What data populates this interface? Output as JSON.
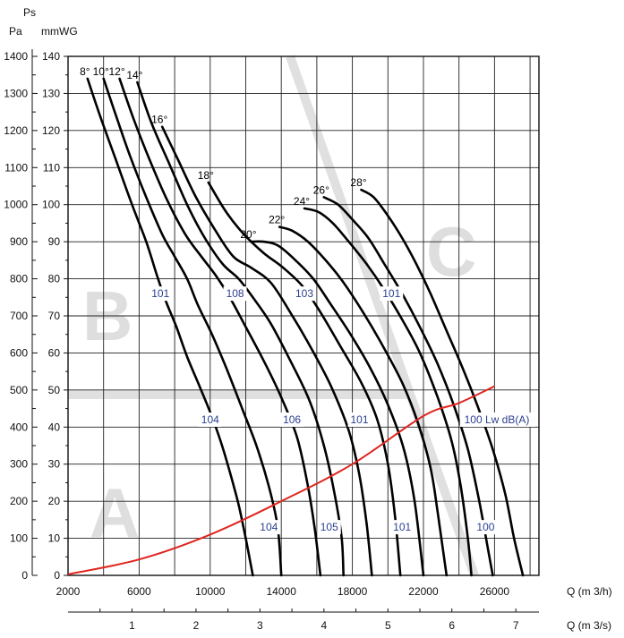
{
  "chart_data": {
    "type": "line",
    "title": "Ps",
    "ylabel_pa": "Pa",
    "ylabel_mmwg": "mmWG",
    "xlabel_m3h": "Q  (m 3/h)",
    "xlabel_m3s": "Q  (m 3/s)",
    "xlim": [
      2000,
      28500
    ],
    "ylim_mmwg": [
      0,
      140
    ],
    "ylim_pa": [
      0,
      1400
    ],
    "pa_ticks": [
      "0",
      "100",
      "200",
      "300",
      "400",
      "500",
      "600",
      "700",
      "800",
      "900",
      "1000",
      "1100",
      "1200",
      "1300",
      "1400"
    ],
    "mmwg_ticks": [
      "0",
      "10",
      "20",
      "30",
      "40",
      "50",
      "60",
      "70",
      "80",
      "90",
      "100",
      "110",
      "120",
      "130",
      "140"
    ],
    "m3h_ticks": [
      {
        "value": 2000,
        "label": "2000"
      },
      {
        "value": 6000,
        "label": "6000"
      },
      {
        "value": 10000,
        "label": "10000"
      },
      {
        "value": 14000,
        "label": "14000"
      },
      {
        "value": 18000,
        "label": "18000"
      },
      {
        "value": 22000,
        "label": "22000"
      },
      {
        "value": 26000,
        "label": "26000"
      }
    ],
    "m3s_ticks": [
      {
        "value": 1,
        "label": "1"
      },
      {
        "value": 2,
        "label": "2"
      },
      {
        "value": 3,
        "label": "3"
      },
      {
        "value": 4,
        "label": "4"
      },
      {
        "value": 5,
        "label": "5"
      },
      {
        "value": 6,
        "label": "6"
      },
      {
        "value": 7,
        "label": "7"
      }
    ],
    "zones": [
      "A",
      "B",
      "C"
    ],
    "series": [
      {
        "name": "8°",
        "label": "8°",
        "points": [
          [
            3100,
            134
          ],
          [
            3800,
            124
          ],
          [
            4700,
            112
          ],
          [
            5600,
            100
          ],
          [
            6400,
            90
          ],
          [
            7000,
            81
          ],
          [
            7500,
            74
          ],
          [
            8100,
            67
          ],
          [
            8700,
            59
          ],
          [
            9400,
            51
          ],
          [
            10000,
            44
          ],
          [
            10600,
            36
          ],
          [
            11100,
            28
          ],
          [
            11600,
            19
          ],
          [
            12000,
            10
          ],
          [
            12400,
            0
          ]
        ]
      },
      {
        "name": "10°",
        "label": "10°",
        "points": [
          [
            4000,
            134
          ],
          [
            4700,
            124
          ],
          [
            5500,
            113
          ],
          [
            6400,
            102
          ],
          [
            7300,
            92
          ],
          [
            8000,
            86
          ],
          [
            8700,
            80
          ],
          [
            9300,
            73
          ],
          [
            10100,
            65
          ],
          [
            10900,
            56
          ],
          [
            11800,
            45
          ],
          [
            12600,
            35
          ],
          [
            13300,
            24
          ],
          [
            13800,
            13
          ],
          [
            14000,
            0
          ]
        ]
      },
      {
        "name": "12°",
        "label": "12°",
        "points": [
          [
            4900,
            134
          ],
          [
            5700,
            123
          ],
          [
            6600,
            112
          ],
          [
            7600,
            101
          ],
          [
            8600,
            92
          ],
          [
            9500,
            86
          ],
          [
            10300,
            81
          ],
          [
            11100,
            75
          ],
          [
            12000,
            67
          ],
          [
            13000,
            58
          ],
          [
            14000,
            48
          ],
          [
            14900,
            37
          ],
          [
            15500,
            24
          ],
          [
            15900,
            12
          ],
          [
            16200,
            0
          ]
        ]
      },
      {
        "name": "14°",
        "label": "14°",
        "points": [
          [
            5900,
            133
          ],
          [
            6700,
            122
          ],
          [
            7700,
            111
          ],
          [
            8700,
            100
          ],
          [
            9700,
            91
          ],
          [
            10700,
            84
          ],
          [
            11600,
            80
          ],
          [
            12400,
            75
          ],
          [
            13400,
            68
          ],
          [
            14500,
            58
          ],
          [
            15600,
            47
          ],
          [
            16400,
            35
          ],
          [
            17000,
            22
          ],
          [
            17400,
            10
          ],
          [
            17500,
            0
          ]
        ]
      },
      {
        "name": "16°",
        "label": "16°",
        "points": [
          [
            7300,
            121
          ],
          [
            8200,
            112
          ],
          [
            9200,
            102
          ],
          [
            10300,
            93
          ],
          [
            11300,
            86
          ],
          [
            12300,
            83
          ],
          [
            13400,
            79
          ],
          [
            14500,
            71
          ],
          [
            15600,
            62
          ],
          [
            16800,
            51
          ],
          [
            17800,
            39
          ],
          [
            18400,
            27
          ],
          [
            18800,
            14
          ],
          [
            19100,
            0
          ]
        ]
      },
      {
        "name": "18°",
        "label": "18°",
        "points": [
          [
            9900,
            106
          ],
          [
            10900,
            98
          ],
          [
            11900,
            92
          ],
          [
            13000,
            87
          ],
          [
            14100,
            83
          ],
          [
            15200,
            78
          ],
          [
            16200,
            71
          ],
          [
            17300,
            62
          ],
          [
            18500,
            52
          ],
          [
            19400,
            42
          ],
          [
            20000,
            30
          ],
          [
            20400,
            16
          ],
          [
            20700,
            0
          ]
        ]
      },
      {
        "name": "20°",
        "label": "20°",
        "points": [
          [
            12300,
            90
          ],
          [
            13000,
            90
          ],
          [
            13800,
            89
          ],
          [
            14800,
            85
          ],
          [
            15800,
            80
          ],
          [
            16800,
            73
          ],
          [
            17900,
            65
          ],
          [
            19000,
            56
          ],
          [
            20000,
            46
          ],
          [
            20900,
            34
          ],
          [
            21500,
            20
          ],
          [
            22000,
            0
          ]
        ]
      },
      {
        "name": "22°",
        "label": "22°",
        "points": [
          [
            13900,
            94
          ],
          [
            14600,
            93
          ],
          [
            15500,
            90
          ],
          [
            16500,
            85
          ],
          [
            17500,
            79
          ],
          [
            18600,
            71
          ],
          [
            19700,
            62
          ],
          [
            20800,
            52
          ],
          [
            21700,
            41
          ],
          [
            22400,
            29
          ],
          [
            22800,
            17
          ],
          [
            23300,
            0
          ]
        ]
      },
      {
        "name": "24°",
        "label": "24°",
        "points": [
          [
            15300,
            99
          ],
          [
            16100,
            98
          ],
          [
            16900,
            95
          ],
          [
            17800,
            90
          ],
          [
            18800,
            84
          ],
          [
            19800,
            77
          ],
          [
            20800,
            69
          ],
          [
            21800,
            60
          ],
          [
            22800,
            48
          ],
          [
            23600,
            36
          ],
          [
            24100,
            24
          ],
          [
            24500,
            10
          ],
          [
            24700,
            0
          ]
        ]
      },
      {
        "name": "26°",
        "label": "26°",
        "points": [
          [
            16400,
            102
          ],
          [
            17200,
            100
          ],
          [
            18000,
            96
          ],
          [
            18900,
            91
          ],
          [
            19800,
            84
          ],
          [
            20800,
            76
          ],
          [
            21800,
            67
          ],
          [
            22800,
            57
          ],
          [
            23700,
            46
          ],
          [
            24500,
            34
          ],
          [
            25100,
            21
          ],
          [
            25600,
            8
          ],
          [
            25900,
            0
          ]
        ]
      },
      {
        "name": "28°",
        "label": "28°",
        "points": [
          [
            18500,
            104
          ],
          [
            19200,
            102
          ],
          [
            20000,
            97
          ],
          [
            20800,
            91
          ],
          [
            21600,
            84
          ],
          [
            22400,
            76
          ],
          [
            23300,
            66
          ],
          [
            24200,
            56
          ],
          [
            25100,
            45
          ],
          [
            25900,
            34
          ],
          [
            26600,
            22
          ],
          [
            27100,
            10
          ],
          [
            27600,
            0
          ]
        ]
      }
    ],
    "system_curve": {
      "name": "system curve",
      "points": [
        [
          2000,
          0.3
        ],
        [
          6000,
          4.3
        ],
        [
          10000,
          11
        ],
        [
          14000,
          20
        ],
        [
          18000,
          30
        ],
        [
          22000,
          43
        ],
        [
          24000,
          46.5
        ],
        [
          26000,
          51
        ]
      ]
    },
    "db_labels": [
      {
        "text": "101",
        "x": 7200,
        "y": 76
      },
      {
        "text": "108",
        "x": 11400,
        "y": 76
      },
      {
        "text": "103",
        "x": 15300,
        "y": 76
      },
      {
        "text": "101",
        "x": 20200,
        "y": 76
      },
      {
        "text": "104",
        "x": 10000,
        "y": 42
      },
      {
        "text": "106",
        "x": 14600,
        "y": 42
      },
      {
        "text": "101",
        "x": 18400,
        "y": 42
      },
      {
        "text": "104",
        "x": 13300,
        "y": 13
      },
      {
        "text": "105",
        "x": 16700,
        "y": 13
      },
      {
        "text": "101",
        "x": 20800,
        "y": 13
      },
      {
        "text": "100",
        "x": 25500,
        "y": 13
      }
    ],
    "sound_label": "100 Lw dB(A)",
    "sound_label_pos": {
      "x": 24300,
      "y": 42
    }
  }
}
